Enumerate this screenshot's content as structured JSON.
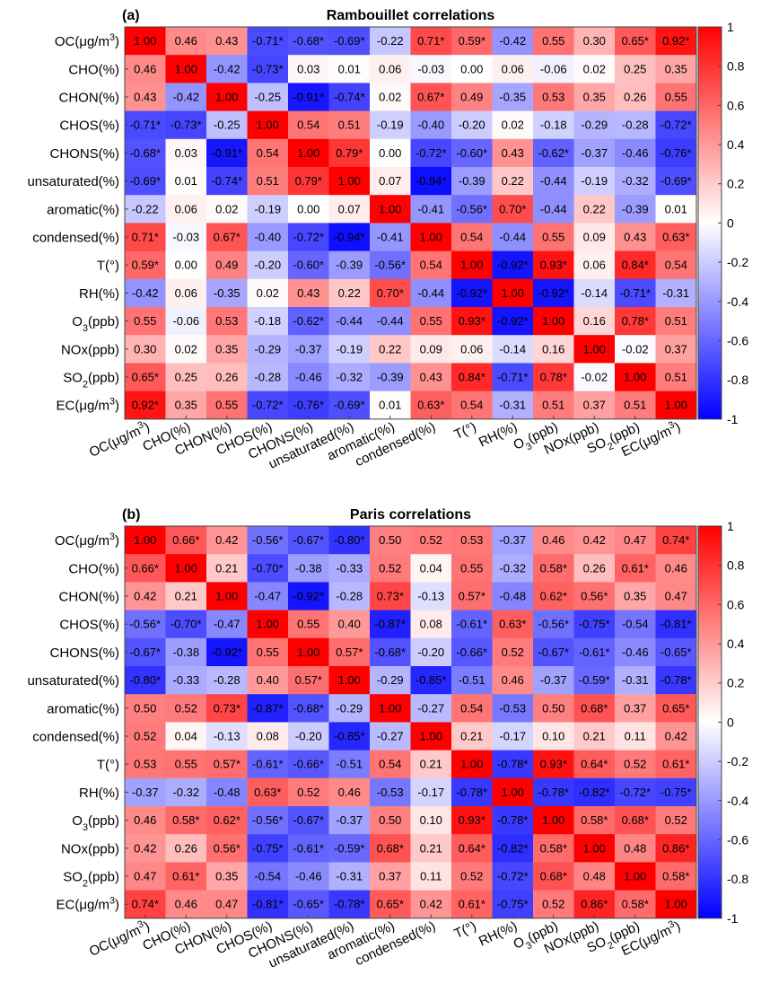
{
  "chart_data": [
    {
      "type": "heatmap",
      "panel_label": "(a)",
      "title": "Rambouillet correlations",
      "labels": [
        "OC(μg/m3)",
        "CHO(%)",
        "CHON(%)",
        "CHOS(%)",
        "CHONS(%)",
        "unsaturated(%)",
        "aromatic(%)",
        "condensed(%)",
        "T(°)",
        "RH(%)",
        "O3(ppb)",
        "NOx(ppb)",
        "SO2(ppb)",
        "EC(μg/m3)"
      ],
      "matrix": [
        [
          1.0,
          0.46,
          0.43,
          -0.71,
          -0.68,
          -0.69,
          -0.22,
          0.71,
          0.59,
          -0.42,
          0.55,
          0.3,
          0.65,
          0.92
        ],
        [
          0.46,
          1.0,
          -0.42,
          -0.73,
          0.03,
          0.01,
          0.06,
          -0.03,
          0.0,
          0.06,
          -0.06,
          0.02,
          0.25,
          0.35
        ],
        [
          0.43,
          -0.42,
          1.0,
          -0.25,
          -0.91,
          -0.74,
          0.02,
          0.67,
          0.49,
          -0.35,
          0.53,
          0.35,
          0.26,
          0.55
        ],
        [
          -0.71,
          -0.73,
          -0.25,
          1.0,
          0.54,
          0.51,
          -0.19,
          -0.4,
          -0.2,
          0.02,
          -0.18,
          -0.29,
          -0.28,
          -0.72
        ],
        [
          -0.68,
          0.03,
          -0.91,
          0.54,
          1.0,
          0.79,
          0.0,
          -0.72,
          -0.6,
          0.43,
          -0.62,
          -0.37,
          -0.46,
          -0.76
        ],
        [
          -0.69,
          0.01,
          -0.74,
          0.51,
          0.79,
          1.0,
          0.07,
          -0.94,
          -0.39,
          0.22,
          -0.44,
          -0.19,
          -0.32,
          -0.69
        ],
        [
          -0.22,
          0.06,
          0.02,
          -0.19,
          0.0,
          0.07,
          1.0,
          -0.41,
          -0.56,
          0.7,
          -0.44,
          0.22,
          -0.39,
          0.01
        ],
        [
          0.71,
          -0.03,
          0.67,
          -0.4,
          -0.72,
          -0.94,
          -0.41,
          1.0,
          0.54,
          -0.44,
          0.55,
          0.09,
          0.43,
          0.63
        ],
        [
          0.59,
          0.0,
          0.49,
          -0.2,
          -0.6,
          -0.39,
          -0.56,
          0.54,
          1.0,
          -0.92,
          0.93,
          0.06,
          0.84,
          0.54
        ],
        [
          -0.42,
          0.06,
          -0.35,
          0.02,
          0.43,
          0.22,
          0.7,
          -0.44,
          -0.92,
          1.0,
          -0.92,
          -0.14,
          -0.71,
          -0.31
        ],
        [
          0.55,
          -0.06,
          0.53,
          -0.18,
          -0.62,
          -0.44,
          -0.44,
          0.55,
          0.93,
          -0.92,
          1.0,
          0.16,
          0.78,
          0.51
        ],
        [
          0.3,
          0.02,
          0.35,
          -0.29,
          -0.37,
          -0.19,
          0.22,
          0.09,
          0.06,
          -0.14,
          0.16,
          1.0,
          -0.02,
          0.37
        ],
        [
          0.65,
          0.25,
          0.26,
          -0.28,
          -0.46,
          -0.32,
          -0.39,
          0.43,
          0.84,
          -0.71,
          0.78,
          -0.02,
          1.0,
          0.51
        ],
        [
          0.92,
          0.35,
          0.55,
          -0.72,
          -0.76,
          -0.69,
          0.01,
          0.63,
          0.54,
          -0.31,
          0.51,
          0.37,
          0.51,
          1.0
        ]
      ],
      "significant": [
        [
          0,
          0,
          0,
          1,
          1,
          1,
          0,
          1,
          1,
          0,
          0,
          0,
          1,
          1
        ],
        [
          0,
          0,
          0,
          1,
          0,
          0,
          0,
          0,
          0,
          0,
          0,
          0,
          0,
          0
        ],
        [
          0,
          0,
          0,
          0,
          1,
          1,
          0,
          1,
          0,
          0,
          0,
          0,
          0,
          0
        ],
        [
          1,
          1,
          0,
          0,
          0,
          0,
          0,
          0,
          0,
          0,
          0,
          0,
          0,
          1
        ],
        [
          1,
          0,
          1,
          0,
          0,
          1,
          0,
          1,
          1,
          0,
          1,
          0,
          0,
          1
        ],
        [
          1,
          0,
          1,
          0,
          1,
          0,
          0,
          1,
          0,
          0,
          0,
          0,
          0,
          1
        ],
        [
          0,
          0,
          0,
          0,
          0,
          0,
          0,
          0,
          1,
          1,
          0,
          0,
          0,
          0
        ],
        [
          1,
          0,
          1,
          0,
          1,
          1,
          0,
          0,
          0,
          0,
          0,
          0,
          0,
          1
        ],
        [
          1,
          0,
          0,
          0,
          1,
          0,
          1,
          0,
          0,
          1,
          1,
          0,
          1,
          0
        ],
        [
          0,
          0,
          0,
          0,
          0,
          0,
          1,
          0,
          1,
          0,
          1,
          0,
          1,
          0
        ],
        [
          0,
          0,
          0,
          0,
          1,
          0,
          0,
          0,
          1,
          1,
          0,
          0,
          1,
          0
        ],
        [
          0,
          0,
          0,
          0,
          0,
          0,
          0,
          0,
          0,
          0,
          0,
          0,
          0,
          0
        ],
        [
          1,
          0,
          0,
          0,
          0,
          0,
          0,
          0,
          1,
          1,
          1,
          0,
          0,
          0
        ],
        [
          1,
          0,
          0,
          1,
          1,
          1,
          0,
          1,
          0,
          0,
          0,
          0,
          0,
          0
        ]
      ],
      "colorbar": {
        "min": -1,
        "max": 1,
        "ticks": [
          "1",
          "0.8",
          "0.6",
          "0.4",
          "0.2",
          "0",
          "-0.2",
          "-0.4",
          "-0.6",
          "-0.8",
          "-1"
        ],
        "colors": {
          "low": "#0000ff",
          "mid": "#ffffff",
          "high": "#ff0000"
        }
      }
    },
    {
      "type": "heatmap",
      "panel_label": "(b)",
      "title": "Paris correlations",
      "labels": [
        "OC(μg/m3)",
        "CHO(%)",
        "CHON(%)",
        "CHOS(%)",
        "CHONS(%)",
        "unsaturated(%)",
        "aromatic(%)",
        "condensed(%)",
        "T(°)",
        "RH(%)",
        "O3(ppb)",
        "NOx(ppb)",
        "SO2(ppb)",
        "EC(μg/m3)"
      ],
      "matrix": [
        [
          1.0,
          0.66,
          0.42,
          -0.56,
          -0.67,
          -0.8,
          0.5,
          0.52,
          0.53,
          -0.37,
          0.46,
          0.42,
          0.47,
          0.74
        ],
        [
          0.66,
          1.0,
          0.21,
          -0.7,
          -0.38,
          -0.33,
          0.52,
          0.04,
          0.55,
          -0.32,
          0.58,
          0.26,
          0.61,
          0.46
        ],
        [
          0.42,
          0.21,
          1.0,
          -0.47,
          -0.92,
          -0.28,
          0.73,
          -0.13,
          0.57,
          -0.48,
          0.62,
          0.56,
          0.35,
          0.47
        ],
        [
          -0.56,
          -0.7,
          -0.47,
          1.0,
          0.55,
          0.4,
          -0.87,
          0.08,
          -0.61,
          0.63,
          -0.56,
          -0.75,
          -0.54,
          -0.81
        ],
        [
          -0.67,
          -0.38,
          -0.92,
          0.55,
          1.0,
          0.57,
          -0.68,
          -0.2,
          -0.66,
          0.52,
          -0.67,
          -0.61,
          -0.46,
          -0.65
        ],
        [
          -0.8,
          -0.33,
          -0.28,
          0.4,
          0.57,
          1.0,
          -0.29,
          -0.85,
          -0.51,
          0.46,
          -0.37,
          -0.59,
          -0.31,
          -0.78
        ],
        [
          0.5,
          0.52,
          0.73,
          -0.87,
          -0.68,
          -0.29,
          1.0,
          -0.27,
          0.54,
          -0.53,
          0.5,
          0.68,
          0.37,
          0.65
        ],
        [
          0.52,
          0.04,
          -0.13,
          0.08,
          -0.2,
          -0.85,
          -0.27,
          1.0,
          0.21,
          -0.17,
          0.1,
          0.21,
          0.11,
          0.42
        ],
        [
          0.53,
          0.55,
          0.57,
          -0.61,
          -0.66,
          -0.51,
          0.54,
          0.21,
          1.0,
          -0.78,
          0.93,
          0.64,
          0.52,
          0.61
        ],
        [
          -0.37,
          -0.32,
          -0.48,
          0.63,
          0.52,
          0.46,
          -0.53,
          -0.17,
          -0.78,
          1.0,
          -0.78,
          -0.82,
          -0.72,
          -0.75
        ],
        [
          0.46,
          0.58,
          0.62,
          -0.56,
          -0.67,
          -0.37,
          0.5,
          0.1,
          0.93,
          -0.78,
          1.0,
          0.58,
          0.68,
          0.52
        ],
        [
          0.42,
          0.26,
          0.56,
          -0.75,
          -0.61,
          -0.59,
          0.68,
          0.21,
          0.64,
          -0.82,
          0.58,
          1.0,
          0.48,
          0.86
        ],
        [
          0.47,
          0.61,
          0.35,
          -0.54,
          -0.46,
          -0.31,
          0.37,
          0.11,
          0.52,
          -0.72,
          0.68,
          0.48,
          1.0,
          0.58
        ],
        [
          0.74,
          0.46,
          0.47,
          -0.81,
          -0.65,
          -0.78,
          0.65,
          0.42,
          0.61,
          -0.75,
          0.52,
          0.86,
          0.58,
          1.0
        ]
      ],
      "significant": [
        [
          0,
          1,
          0,
          1,
          1,
          1,
          0,
          0,
          0,
          0,
          0,
          0,
          0,
          1
        ],
        [
          1,
          0,
          0,
          1,
          0,
          0,
          0,
          0,
          0,
          0,
          1,
          0,
          1,
          0
        ],
        [
          0,
          0,
          0,
          0,
          1,
          0,
          1,
          0,
          1,
          0,
          1,
          1,
          0,
          0
        ],
        [
          1,
          1,
          0,
          0,
          0,
          0,
          1,
          0,
          1,
          1,
          1,
          1,
          0,
          1
        ],
        [
          1,
          0,
          1,
          0,
          0,
          1,
          1,
          0,
          1,
          0,
          1,
          1,
          0,
          1
        ],
        [
          1,
          0,
          0,
          0,
          1,
          0,
          0,
          1,
          0,
          0,
          0,
          1,
          0,
          1
        ],
        [
          0,
          0,
          1,
          1,
          1,
          0,
          0,
          0,
          0,
          0,
          0,
          1,
          0,
          1
        ],
        [
          0,
          0,
          0,
          0,
          0,
          1,
          0,
          0,
          0,
          0,
          0,
          0,
          0,
          0
        ],
        [
          0,
          0,
          1,
          1,
          1,
          0,
          0,
          0,
          0,
          1,
          1,
          1,
          0,
          1
        ],
        [
          0,
          0,
          0,
          1,
          0,
          0,
          0,
          0,
          1,
          0,
          1,
          1,
          1,
          1
        ],
        [
          0,
          1,
          1,
          1,
          1,
          0,
          0,
          0,
          1,
          1,
          0,
          1,
          1,
          0
        ],
        [
          0,
          0,
          1,
          1,
          1,
          1,
          1,
          0,
          1,
          1,
          1,
          0,
          0,
          1
        ],
        [
          0,
          1,
          0,
          0,
          0,
          0,
          0,
          0,
          0,
          1,
          1,
          0,
          0,
          1
        ],
        [
          1,
          0,
          0,
          1,
          1,
          1,
          1,
          0,
          1,
          1,
          0,
          1,
          1,
          0
        ]
      ],
      "colorbar": {
        "min": -1,
        "max": 1,
        "ticks": [
          "1",
          "0.8",
          "0.6",
          "0.4",
          "0.2",
          "0",
          "-0.2",
          "-0.4",
          "-0.6",
          "-0.8",
          "-1"
        ],
        "colors": {
          "low": "#0000ff",
          "mid": "#ffffff",
          "high": "#ff0000"
        }
      }
    }
  ]
}
